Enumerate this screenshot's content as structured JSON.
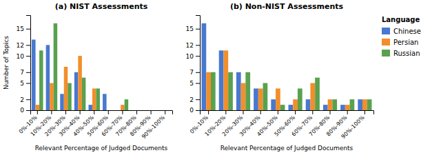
{
  "chart_data": [
    {
      "type": "bar",
      "title": "(a) NIST Assessments",
      "x_label": "Relevant Percentage of Judged Documents",
      "y_label": "Number of Topics",
      "categories": [
        "0%-10%",
        "10%-20%",
        "20%-30%",
        "30%-40%",
        "40%-50%",
        "50%-60%",
        "60%-70%",
        "70%-80%",
        "80%-90%",
        "90%-100%"
      ],
      "series": [
        {
          "name": "Chinese",
          "color": "#4878cf",
          "values": [
            13,
            12,
            3,
            7,
            1,
            3,
            0,
            0,
            0,
            0
          ]
        },
        {
          "name": "Persian",
          "color": "#f28e2b",
          "values": [
            1,
            5,
            8,
            10,
            4,
            0,
            1,
            0,
            0,
            0
          ]
        },
        {
          "name": "Russian",
          "color": "#59a14f",
          "values": [
            11,
            16,
            5,
            6,
            4,
            0,
            2,
            0,
            0,
            0
          ]
        }
      ],
      "ylim": [
        0,
        17.5
      ],
      "yticks": [
        0,
        2,
        5,
        7,
        10,
        12,
        15
      ],
      "grid": false
    },
    {
      "type": "bar",
      "title": "(b) Non-NIST Assessments",
      "x_label": "Relevant Percentage of Judged Documents",
      "categories": [
        "0%-10%",
        "10%-20%",
        "20%-30%",
        "30%-40%",
        "40%-50%",
        "50%-60%",
        "60%-70%",
        "70%-80%",
        "80%-90%",
        "90%-100%"
      ],
      "series": [
        {
          "name": "Chinese",
          "color": "#4878cf",
          "values": [
            16,
            11,
            7,
            4,
            2,
            1,
            2,
            1,
            1,
            2
          ]
        },
        {
          "name": "Persian",
          "color": "#f28e2b",
          "values": [
            7,
            11,
            5,
            4,
            4,
            2,
            5,
            2,
            1,
            2
          ]
        },
        {
          "name": "Russian",
          "color": "#59a14f",
          "values": [
            7,
            7,
            7,
            5,
            1,
            4,
            6,
            2,
            2,
            2
          ]
        }
      ],
      "ylim": [
        0,
        17.5
      ],
      "yticks": [
        0,
        2,
        5,
        7,
        10,
        12,
        15
      ],
      "grid": false,
      "legend": "right",
      "legend_title": "Language"
    }
  ]
}
